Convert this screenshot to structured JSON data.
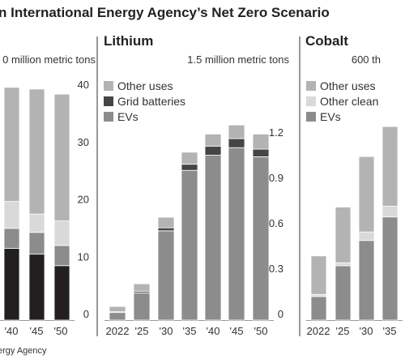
{
  "page": {
    "title": "n International Energy Agency’s Net Zero Scenario",
    "source": "ergy Agency"
  },
  "colors": {
    "other_uses": "#b3b3b3",
    "other_clean": "#d9d9d9",
    "grid_batteries": "#454545",
    "evs": "#8c8c8c",
    "first_panel_bottom": "#231f20",
    "grid": "#999999",
    "divider": "#333333"
  },
  "chart_data": [
    {
      "type": "bar",
      "stacked": true,
      "title": "",
      "unit_label": "0 million metric tons",
      "categories": [
        "'40",
        "'45",
        "'50"
      ],
      "ylim": [
        0,
        40
      ],
      "y_ticks": [
        "0",
        "10",
        "20",
        "30",
        "40"
      ],
      "series": [
        {
          "key": "bottom",
          "color_key": "first_panel_bottom",
          "values": [
            12.5,
            11.5,
            9.5
          ]
        },
        {
          "key": "layer2",
          "color_key": "evs",
          "values": [
            3.5,
            3.8,
            3.5
          ]
        },
        {
          "key": "layer3",
          "color_key": "other_clean",
          "values": [
            4.7,
            3.2,
            4.3
          ]
        },
        {
          "key": "layer4",
          "color_key": "other_uses",
          "values": [
            19.9,
            21.8,
            22.1
          ]
        }
      ]
    },
    {
      "type": "bar",
      "stacked": true,
      "title": "Lithium",
      "unit_label": "1.5 million metric tons",
      "categories": [
        "2022",
        "'25",
        "'30",
        "'35",
        "'40",
        "'45",
        "'50"
      ],
      "ylim": [
        0,
        1.5
      ],
      "y_ticks": [
        "0",
        "0.3",
        "0.6",
        "0.9",
        "1.2"
      ],
      "legend": [
        "Other uses",
        "Grid batteries",
        "EVs"
      ],
      "series": [
        {
          "name": "EVs",
          "color_key": "evs",
          "values": [
            0.05,
            0.18,
            0.59,
            0.99,
            1.09,
            1.14,
            1.08
          ]
        },
        {
          "name": "Grid batteries",
          "color_key": "grid_batteries",
          "values": [
            0.005,
            0.01,
            0.02,
            0.04,
            0.06,
            0.06,
            0.05
          ]
        },
        {
          "name": "Other uses",
          "color_key": "other_uses",
          "values": [
            0.035,
            0.05,
            0.07,
            0.08,
            0.08,
            0.09,
            0.1
          ]
        }
      ]
    },
    {
      "type": "bar",
      "stacked": true,
      "title": "Cobalt",
      "unit_label": "600 th",
      "categories": [
        "2022",
        "'25",
        "'30",
        "'35"
      ],
      "ylim": [
        0,
        600
      ],
      "legend": [
        "Other uses",
        "Other clean",
        "EVs"
      ],
      "series": [
        {
          "name": "EVs",
          "color_key": "evs",
          "values": [
            55,
            127,
            186,
            241
          ]
        },
        {
          "name": "Other clean",
          "color_key": "other_clean",
          "values": [
            5,
            7,
            20,
            25
          ]
        },
        {
          "name": "Other uses",
          "color_key": "other_uses",
          "values": [
            90,
            130,
            176,
            186
          ]
        }
      ]
    }
  ]
}
